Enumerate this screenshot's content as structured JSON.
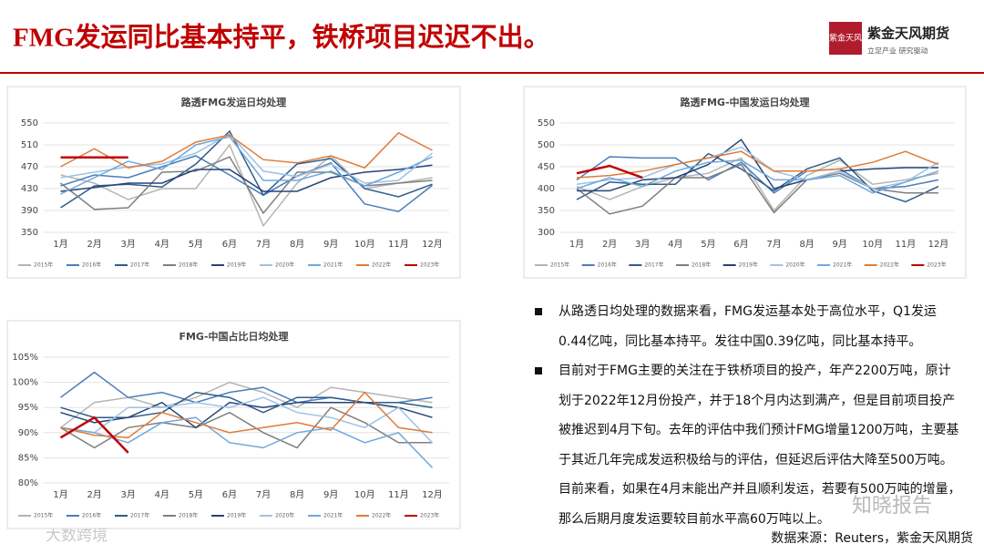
{
  "header": {
    "title": "FMG发运同比基本持平，铁桥项目迟迟不出。",
    "logo_text": "紫金天风期货",
    "logo_subtitle": "立足产业 研究驱动",
    "logo_mark": "紫金天风"
  },
  "chart_data": [
    {
      "type": "line",
      "title": "路透FMG发运日均处理",
      "categories": [
        "1月",
        "2月",
        "3月",
        "4月",
        "5月",
        "6月",
        "7月",
        "8月",
        "9月",
        "10月",
        "11月",
        "12月"
      ],
      "ylim": [
        350,
        550
      ],
      "yticks": [
        350,
        390,
        430,
        470,
        510,
        550
      ],
      "grid": true,
      "series": [
        {
          "name": "2015年",
          "color": "#b4b4b4",
          "values": [
            455,
            440,
            410,
            430,
            430,
            510,
            362,
            440,
            490,
            430,
            440,
            450
          ]
        },
        {
          "name": "2016年",
          "color": "#4a7ebb",
          "values": [
            435,
            455,
            450,
            470,
            490,
            455,
            418,
            453,
            477,
            402,
            388,
            436
          ]
        },
        {
          "name": "2017年",
          "color": "#2e5d8a",
          "values": [
            395,
            435,
            438,
            433,
            475,
            535,
            418,
            475,
            485,
            430,
            415,
            438
          ]
        },
        {
          "name": "2018年",
          "color": "#7f7f7f",
          "values": [
            440,
            392,
            395,
            460,
            462,
            488,
            385,
            460,
            460,
            435,
            440,
            445
          ]
        },
        {
          "name": "2019年",
          "color": "#264478",
          "values": [
            425,
            432,
            440,
            440,
            465,
            465,
            425,
            425,
            450,
            460,
            465,
            473
          ]
        },
        {
          "name": "2020年",
          "color": "#9dc3e6",
          "values": [
            450,
            460,
            470,
            475,
            495,
            530,
            462,
            452,
            475,
            440,
            445,
            495
          ]
        },
        {
          "name": "2021年",
          "color": "#6fa8dc",
          "values": [
            420,
            450,
            480,
            465,
            510,
            525,
            445,
            445,
            462,
            435,
            460,
            488
          ]
        },
        {
          "name": "2022年",
          "color": "#e07b39",
          "values": [
            470,
            503,
            468,
            480,
            515,
            528,
            483,
            477,
            490,
            468,
            532,
            500
          ]
        },
        {
          "name": "2023年",
          "color": "#c00000",
          "values": [
            487,
            487,
            487,
            null,
            null,
            null,
            null,
            null,
            null,
            null,
            null,
            null
          ]
        }
      ]
    },
    {
      "type": "line",
      "title": "路透FMG-中国发运日均处理",
      "categories": [
        "1月",
        "2月",
        "3月",
        "4月",
        "5月",
        "6月",
        "7月",
        "8月",
        "9月",
        "10月",
        "11月",
        "12月"
      ],
      "ylim": [
        300,
        550
      ],
      "yticks": [
        300,
        350,
        400,
        450,
        500,
        550
      ],
      "grid": true,
      "series": [
        {
          "name": "2015年",
          "color": "#b4b4b4",
          "values": [
            405,
            375,
            405,
            425,
            435,
            470,
            350,
            430,
            465,
            410,
            420,
            435
          ]
        },
        {
          "name": "2016年",
          "color": "#4a7ebb",
          "values": [
            420,
            473,
            470,
            470,
            420,
            460,
            390,
            440,
            445,
            400,
            405,
            420
          ]
        },
        {
          "name": "2017年",
          "color": "#2e5d8a",
          "values": [
            375,
            415,
            410,
            410,
            480,
            445,
            395,
            445,
            470,
            395,
            370,
            405
          ]
        },
        {
          "name": "2018年",
          "color": "#7f7f7f",
          "values": [
            400,
            342,
            360,
            425,
            425,
            455,
            345,
            420,
            435,
            400,
            390,
            390
          ]
        },
        {
          "name": "2019年",
          "color": "#264478",
          "values": [
            395,
            395,
            420,
            425,
            455,
            512,
            400,
            420,
            440,
            445,
            448,
            448
          ]
        },
        {
          "name": "2020年",
          "color": "#9dc3e6",
          "values": [
            410,
            420,
            425,
            455,
            470,
            495,
            440,
            420,
            440,
            400,
            415,
            460
          ]
        },
        {
          "name": "2021年",
          "color": "#6fa8dc",
          "values": [
            400,
            425,
            405,
            440,
            460,
            465,
            420,
            420,
            430,
            390,
            415,
            440
          ]
        },
        {
          "name": "2022年",
          "color": "#e07b39",
          "values": [
            425,
            430,
            440,
            455,
            470,
            485,
            440,
            440,
            445,
            460,
            485,
            455
          ]
        },
        {
          "name": "2023年",
          "color": "#c00000",
          "values": [
            435,
            452,
            425,
            null,
            null,
            null,
            null,
            null,
            null,
            null,
            null,
            null
          ]
        }
      ]
    },
    {
      "type": "line",
      "title": "FMG-中国占比日均处理",
      "categories": [
        "1月",
        "2月",
        "3月",
        "4月",
        "5月",
        "6月",
        "7月",
        "8月",
        "9月",
        "10月",
        "11月",
        "12月"
      ],
      "ylim": [
        80,
        105
      ],
      "yticks": [
        {
          "value": 80,
          "label": "80%"
        },
        {
          "value": 85,
          "label": "85%"
        },
        {
          "value": 90,
          "label": "90%"
        },
        {
          "value": 95,
          "label": "95%"
        },
        {
          "value": 100,
          "label": "100%"
        },
        {
          "value": 105,
          "label": "105%"
        }
      ],
      "grid": true,
      "series": [
        {
          "name": "2015年",
          "color": "#b4b4b4",
          "values": [
            91,
            96,
            97,
            95,
            97,
            100,
            98,
            95,
            99,
            98,
            97,
            96
          ]
        },
        {
          "name": "2016年",
          "color": "#4a7ebb",
          "values": [
            97,
            102,
            97,
            98,
            96,
            98,
            99,
            96,
            97,
            96,
            96,
            97
          ]
        },
        {
          "name": "2017年",
          "color": "#2e5d8a",
          "values": [
            95,
            93,
            93,
            94,
            98,
            97,
            94,
            97,
            97,
            96,
            96,
            95
          ]
        },
        {
          "name": "2018年",
          "color": "#7f7f7f",
          "values": [
            91,
            87,
            91,
            92,
            91,
            94,
            90,
            87,
            95,
            92,
            88,
            88
          ]
        },
        {
          "name": "2019年",
          "color": "#264478",
          "values": [
            94,
            92,
            93,
            96,
            91,
            96,
            95,
            96,
            96,
            96,
            95,
            93
          ]
        },
        {
          "name": "2020年",
          "color": "#9dc3e6",
          "values": [
            91,
            90,
            95,
            95,
            96,
            95,
            97,
            94,
            93,
            91,
            95,
            88
          ]
        },
        {
          "name": "2021年",
          "color": "#6fa8dc",
          "values": [
            91,
            90,
            88,
            92,
            93,
            88,
            87,
            90,
            91,
            88,
            90,
            83
          ]
        },
        {
          "name": "2022年",
          "color": "#e07b39",
          "values": [
            91,
            89.5,
            89,
            94,
            92,
            90,
            91,
            92,
            90.5,
            98,
            91,
            90
          ]
        },
        {
          "name": "2023年",
          "color": "#c00000",
          "values": [
            89,
            93,
            86,
            null,
            null,
            null,
            null,
            null,
            null,
            null,
            null,
            null
          ]
        }
      ]
    }
  ],
  "bullets": [
    "从路透日均处理的数据来看，FMG发运基本处于高位水平，Q1发运0.44亿吨，同比基本持平。发往中国0.39亿吨，同比基本持平。",
    "目前对于FMG主要的关注在于铁桥项目的投产，年产2200万吨，原计划于2022年12月份投产，并于18个月内达到满产，但是目前项目投产被推迟到4月下旬。去年的评估中我们预计FMG增量1200万吨，主要基于其近几年完成发运积极给与的评估，但延迟后评估大降至500万吨。目前来看，如果在4月末能出产并且顺利发运，若要有500万吨的增量，那么后期月度发运要较目前水平高60万吨以上。"
  ],
  "source": "数据来源：Reuters，紫金天风期货",
  "watermarks": [
    "知晓报告",
    "大数跨境"
  ]
}
